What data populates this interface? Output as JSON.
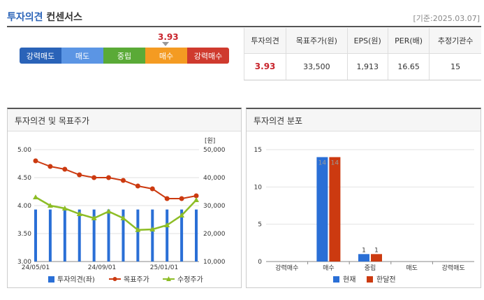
{
  "header": {
    "title_accent": "투자의견",
    "title_rest": "컨센서스",
    "date": "[기준:2025.03.07]"
  },
  "gauge": {
    "marker_value": "3.93",
    "segments": [
      {
        "label": "강력매도",
        "color": "#2a63b8"
      },
      {
        "label": "매도",
        "color": "#5b95e4"
      },
      {
        "label": "중립",
        "color": "#5aaa37"
      },
      {
        "label": "매수",
        "color": "#f49b22"
      },
      {
        "label": "강력매수",
        "color": "#cf3a2e"
      }
    ]
  },
  "summary": {
    "headers": [
      "투자의견",
      "목표주가(원)",
      "EPS(원)",
      "PER(배)",
      "추정기관수"
    ],
    "values": [
      "3.93",
      "33,500",
      "1,913",
      "16.65",
      "15"
    ]
  },
  "panel_left": {
    "title": "투자의견 및 목표주가"
  },
  "panel_right": {
    "title": "투자의견 분포"
  },
  "chart_data": [
    {
      "type": "line",
      "title": "투자의견 및 목표주가",
      "unit_label": "[원]",
      "x_ticks": [
        "24/05/01",
        "24/09/01",
        "25/01/01"
      ],
      "y_left_ticks": [
        "5.00",
        "4.50",
        "4.00",
        "3.50",
        "3.00"
      ],
      "y_right_ticks": [
        "50,000",
        "40,000",
        "30,000",
        "20,000",
        "10,000"
      ],
      "ylim_left": [
        3.0,
        5.0
      ],
      "ylim_right": [
        10000,
        50000
      ],
      "bar_values": [
        3.93,
        3.93,
        3.93,
        3.93,
        3.93,
        3.93,
        3.93,
        3.93,
        3.93,
        3.93,
        3.93,
        3.93
      ],
      "target_price": [
        46000,
        44000,
        43000,
        41000,
        40000,
        40000,
        39000,
        37000,
        36000,
        32500,
        32500,
        33500
      ],
      "revised_price": [
        33000,
        30000,
        29000,
        27000,
        25500,
        27900,
        25500,
        21300,
        21500,
        23000,
        26500,
        32000
      ],
      "legend": [
        "투자의견(좌)",
        "목표주가",
        "수정주가"
      ],
      "colors": {
        "opinion": "#2a6fd6",
        "target": "#cc3a10",
        "revised": "#8dbd26"
      }
    },
    {
      "type": "bar",
      "title": "투자의견 분포",
      "categories": [
        "강력매수",
        "매수",
        "중립",
        "매도",
        "강력매도"
      ],
      "series": [
        {
          "name": "현재",
          "values": [
            0,
            14,
            1,
            0,
            0
          ],
          "color": "#2a6fd6"
        },
        {
          "name": "한달전",
          "values": [
            0,
            14,
            1,
            0,
            0
          ],
          "color": "#cc3a10"
        }
      ],
      "y_ticks": [
        "15",
        "10",
        "5",
        "0"
      ],
      "ylim": [
        0,
        15
      ],
      "data_labels": [
        "14",
        "14",
        "1",
        "1"
      ]
    }
  ]
}
